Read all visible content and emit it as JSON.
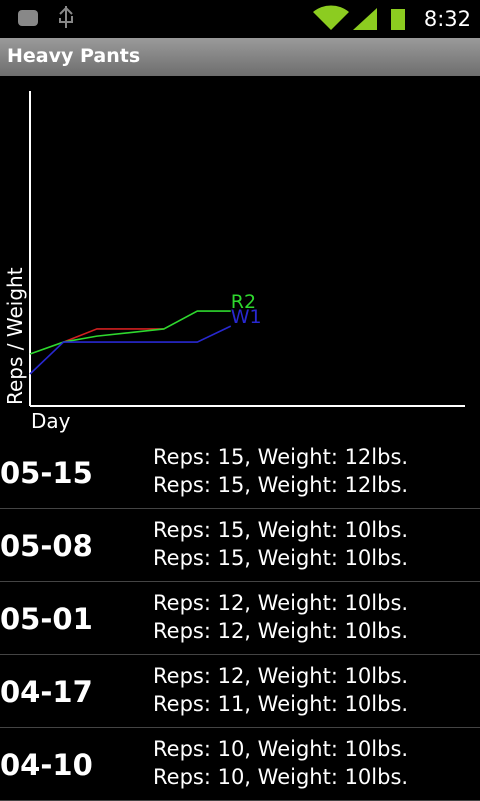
{
  "status_bar": {
    "time": "8:32"
  },
  "app_bar": {
    "title": "Heavy Pants"
  },
  "chart_data": {
    "type": "line",
    "x_label": "Day",
    "y_label": "Reps / Weight",
    "xlim": [
      0,
      13
    ],
    "ylim": [
      0,
      100
    ],
    "series": [
      {
        "color": "#d02020",
        "x": [
          1,
          2,
          4
        ],
        "values": [
          20.1,
          24.3,
          24.3
        ]
      },
      {
        "name": "R2",
        "color": "#2ed82e",
        "x": [
          0,
          1,
          2,
          4,
          5,
          6
        ],
        "values": [
          16.3,
          20.1,
          22,
          24.3,
          30,
          30
        ]
      },
      {
        "name": "W1",
        "color": "#2828d0",
        "x": [
          0,
          1,
          5,
          6
        ],
        "values": [
          9.9,
          20.1,
          20.1,
          25.2
        ]
      }
    ]
  },
  "list": {
    "rows": [
      {
        "date": "05-15",
        "lines": [
          "Reps: 15, Weight: 12lbs.",
          "Reps: 15, Weight: 12lbs."
        ]
      },
      {
        "date": "05-08",
        "lines": [
          "Reps: 15, Weight: 10lbs.",
          "Reps: 15, Weight: 10lbs."
        ]
      },
      {
        "date": "05-01",
        "lines": [
          "Reps: 12, Weight: 10lbs.",
          "Reps: 12, Weight: 10lbs."
        ]
      },
      {
        "date": "04-17",
        "lines": [
          "Reps: 12, Weight: 10lbs.",
          "Reps: 11, Weight: 10lbs."
        ]
      },
      {
        "date": "04-10",
        "lines": [
          "Reps: 10, Weight: 10lbs.",
          "Reps: 10, Weight: 10lbs."
        ]
      }
    ]
  }
}
